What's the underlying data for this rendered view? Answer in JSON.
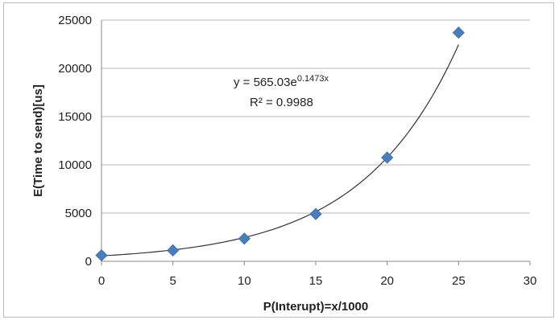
{
  "chart_data": {
    "type": "scatter",
    "xlabel": "P(Interupt)=x/1000",
    "ylabel": "E(Time to send)[us]",
    "xlim": [
      0,
      30
    ],
    "ylim": [
      0,
      25000
    ],
    "xticks": [
      "0",
      "5",
      "10",
      "15",
      "20",
      "25",
      "30"
    ],
    "yticks": [
      "0",
      "5000",
      "10000",
      "15000",
      "20000",
      "25000"
    ],
    "grid": "horizontal",
    "legend": "none",
    "series": [
      {
        "x": [
          0,
          5,
          10,
          15,
          20,
          25
        ],
        "y": [
          620,
          1130,
          2350,
          4900,
          10750,
          23700
        ],
        "marker": "diamond",
        "color": "#4a7ebb"
      }
    ],
    "trendline": {
      "type": "exponential",
      "a": 565.03,
      "b": 0.1473,
      "color": "#333333",
      "equation_prefix": "y = 565.03e",
      "equation_exponent": "0.1473x",
      "r2_label": "R² = 0.9988"
    }
  }
}
